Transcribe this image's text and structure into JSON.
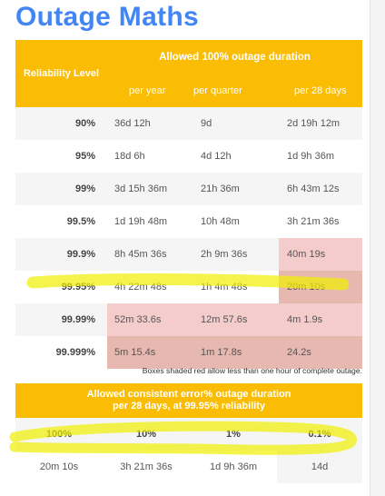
{
  "title": "Outage Maths",
  "table1": {
    "level_header": "Reliability Level",
    "span_header": "Allowed 100% outage duration",
    "columns": [
      "per year",
      "per quarter",
      "per 28 days"
    ],
    "rows": [
      {
        "level": "90%",
        "year": "36d 12h",
        "quarter": "9d",
        "days28": "2d 19h 12m"
      },
      {
        "level": "95%",
        "year": "18d 6h",
        "quarter": "4d 12h",
        "days28": "1d 9h 36m"
      },
      {
        "level": "99%",
        "year": "3d 15h 36m",
        "quarter": "21h 36m",
        "days28": "6h 43m 12s"
      },
      {
        "level": "99.5%",
        "year": "1d 19h 48m",
        "quarter": "10h 48m",
        "days28": "3h 21m 36s"
      },
      {
        "level": "99.9%",
        "year": "8h 45m 36s",
        "quarter": "2h 9m 36s",
        "days28": "40m 19s"
      },
      {
        "level": "99.95%",
        "year": "4h 22m 48s",
        "quarter": "1h 4m 48s",
        "days28": "20m 10s"
      },
      {
        "level": "99.99%",
        "year": "52m 33.6s",
        "quarter": "12m 57.6s",
        "days28": "4m 1.9s"
      },
      {
        "level": "99.999%",
        "year": "5m 15.4s",
        "quarter": "1m 17.8s",
        "days28": "24.2s"
      }
    ],
    "footnote": "Boxes shaded red allow less than one hour of complete outage."
  },
  "table2": {
    "header_line1": "Allowed consistent error% outage duration",
    "header_line2": "per 28 days, at 99.95% reliability",
    "percents": [
      "100%",
      "10%",
      "1%",
      "0.1%"
    ],
    "durations": [
      "20m 10s",
      "3h 21m 36s",
      "1d 9h 36m",
      "14d"
    ]
  },
  "colors": {
    "title": "#4285f4",
    "header": "#fbbc04",
    "red_light": "#f4cccc",
    "red_dark": "#e6b8af",
    "highlighter": "#f0f000"
  }
}
